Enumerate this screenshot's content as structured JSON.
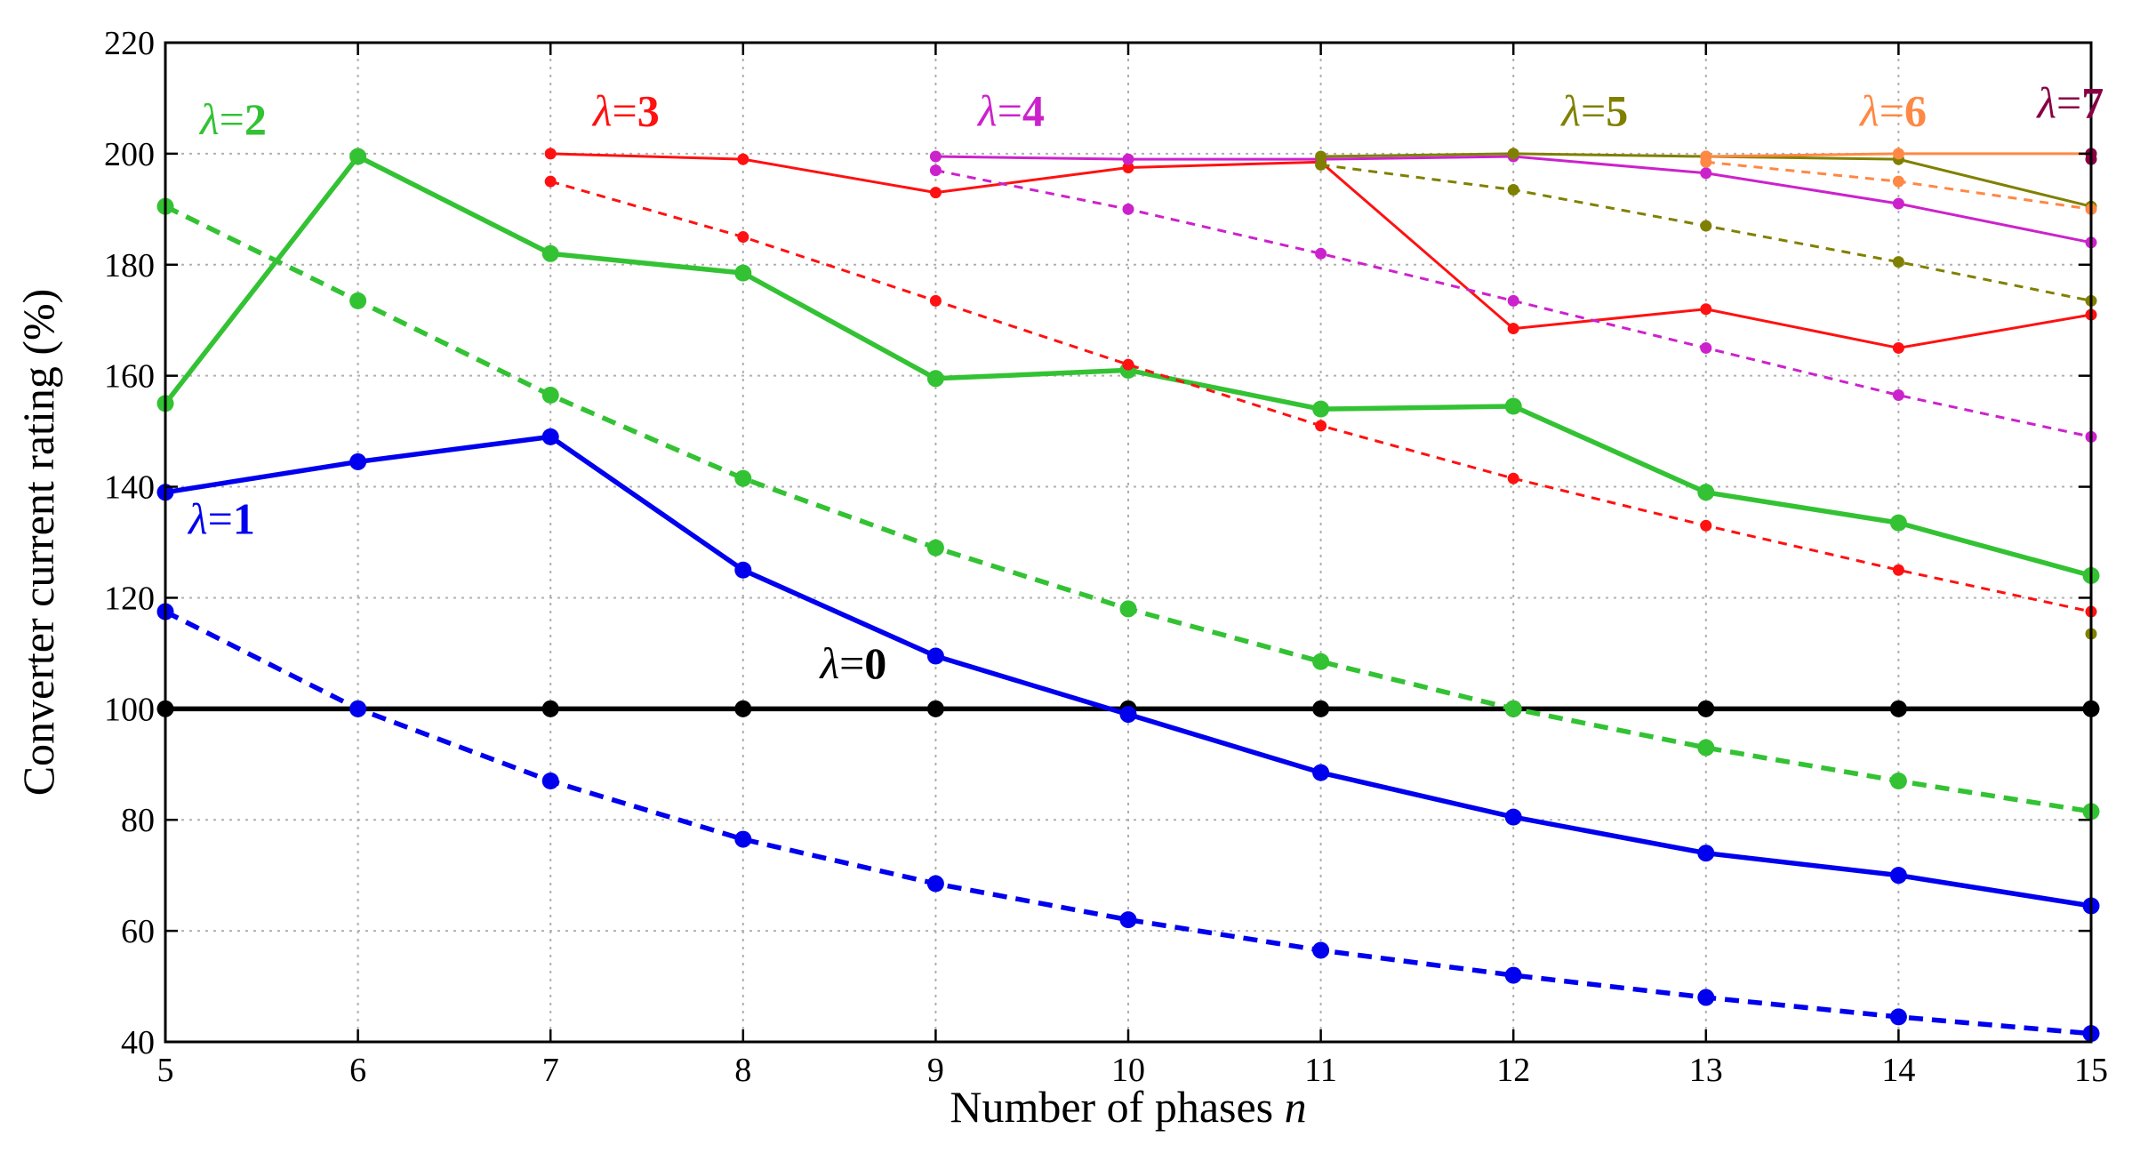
{
  "chart_data": {
    "type": "line",
    "title": "",
    "xlabel": "Number of phases ",
    "xlabel_var": "n",
    "ylabel": "Converter current rating (%)",
    "xlim": [
      5,
      15
    ],
    "ylim": [
      40,
      220
    ],
    "xticks": [
      5,
      6,
      7,
      8,
      9,
      10,
      11,
      12,
      13,
      14,
      15
    ],
    "yticks": [
      40,
      60,
      80,
      100,
      120,
      140,
      160,
      180,
      200,
      220
    ],
    "grid": true,
    "series": [
      {
        "name": "λ=0 solid",
        "lambda": 0,
        "color": "#000000",
        "style": "solid",
        "x": [
          5,
          6,
          7,
          8,
          9,
          10,
          11,
          12,
          13,
          14,
          15
        ],
        "values": [
          100,
          100,
          100,
          100,
          100,
          100,
          100,
          100,
          100,
          100,
          100
        ]
      },
      {
        "name": "λ=1 solid",
        "lambda": 1,
        "color": "#0000ee",
        "style": "solid",
        "x": [
          5,
          6,
          7,
          8,
          9,
          10,
          11,
          12,
          13,
          14,
          15
        ],
        "values": [
          139,
          144.5,
          149,
          125,
          109.5,
          99,
          88.5,
          80.5,
          74,
          70,
          64.5
        ]
      },
      {
        "name": "λ=1 dashed",
        "lambda": 1,
        "color": "#0000ee",
        "style": "dashed",
        "x": [
          5,
          6,
          7,
          8,
          9,
          10,
          11,
          12,
          13,
          14,
          15
        ],
        "values": [
          117.5,
          100,
          87,
          76.5,
          68.5,
          62,
          56.5,
          52,
          48,
          44.5,
          41.5
        ]
      },
      {
        "name": "λ=2 solid",
        "lambda": 2,
        "color": "#33c233",
        "style": "solid",
        "x": [
          5,
          6,
          7,
          8,
          9,
          10,
          11,
          12,
          13,
          14,
          15
        ],
        "values": [
          155,
          199.5,
          182,
          178.5,
          159.5,
          161,
          154,
          154.5,
          139,
          133.5,
          124
        ]
      },
      {
        "name": "λ=2 dashed",
        "lambda": 2,
        "color": "#33c233",
        "style": "dashed",
        "x": [
          5,
          6,
          7,
          8,
          9,
          10,
          11,
          12,
          13,
          14,
          15
        ],
        "values": [
          190.5,
          173.5,
          156.5,
          141.5,
          129,
          118,
          108.5,
          100,
          93,
          87,
          81.5
        ]
      },
      {
        "name": "λ=3 solid",
        "lambda": 3,
        "color": "#ff1111",
        "style": "solid",
        "x": [
          7,
          8,
          9,
          10,
          11,
          12,
          13,
          14,
          15
        ],
        "values": [
          200,
          199,
          193,
          197.5,
          198.5,
          168.5,
          172,
          165,
          171
        ]
      },
      {
        "name": "λ=3 dashed",
        "lambda": 3,
        "color": "#ff1111",
        "style": "dashed",
        "x": [
          7,
          8,
          9,
          10,
          11,
          12,
          13,
          14,
          15
        ],
        "values": [
          195,
          185,
          173.5,
          162,
          151,
          141.5,
          133,
          125,
          117.5
        ]
      },
      {
        "name": "λ=4 solid",
        "lambda": 4,
        "color": "#cc22cc",
        "style": "solid",
        "x": [
          9,
          10,
          11,
          12,
          13,
          14,
          15
        ],
        "values": [
          199.5,
          199,
          199,
          199.5,
          196.5,
          191,
          184
        ]
      },
      {
        "name": "λ=4 dashed",
        "lambda": 4,
        "color": "#cc22cc",
        "style": "dashed",
        "x": [
          9,
          10,
          11,
          12,
          13,
          14,
          15
        ],
        "values": [
          197,
          190,
          182,
          173.5,
          165,
          156.5,
          149
        ]
      },
      {
        "name": "λ=5 solid",
        "lambda": 5,
        "color": "#808000",
        "style": "solid",
        "x": [
          11,
          12,
          13,
          14,
          15
        ],
        "values": [
          199.5,
          200,
          199.5,
          199,
          190.5
        ]
      },
      {
        "name": "λ=5 dashed",
        "lambda": 5,
        "color": "#808000",
        "style": "dashed",
        "x": [
          11,
          12,
          13,
          14,
          15
        ],
        "values": [
          198,
          193.5,
          187,
          180.5,
          173.5
        ]
      },
      {
        "name": "λ=5 single",
        "lambda": 5,
        "color": "#808000",
        "style": "point",
        "x": [
          15
        ],
        "values": [
          113.5
        ]
      },
      {
        "name": "λ=6 solid",
        "lambda": 6,
        "color": "#ff8844",
        "style": "solid",
        "x": [
          13,
          14,
          15
        ],
        "values": [
          199.5,
          200,
          200
        ]
      },
      {
        "name": "λ=6 dashed",
        "lambda": 6,
        "color": "#ff8844",
        "style": "dashed",
        "x": [
          13,
          14,
          15
        ],
        "values": [
          198.5,
          195,
          190
        ]
      },
      {
        "name": "λ=7 points",
        "lambda": 7,
        "color": "#880044",
        "style": "point",
        "x": [
          15,
          15
        ],
        "values": [
          200,
          199
        ]
      }
    ],
    "annotations": [
      {
        "text_sym": "λ",
        "text_op": "=",
        "text_num": "0",
        "color": "#000000",
        "x": 8.4,
        "y": 105.5,
        "italic_num": false
      },
      {
        "text_sym": "λ",
        "text_op": "=",
        "text_num": "1",
        "color": "#0000ee",
        "x": 5.12,
        "y": 131.5,
        "italic_num": false
      },
      {
        "text_sym": "λ",
        "text_op": "=",
        "text_num": "2",
        "color": "#33c233",
        "x": 5.18,
        "y": 203.5,
        "italic_num": false
      },
      {
        "text_sym": "λ",
        "text_op": "=",
        "text_num": "3",
        "color": "#ff1111",
        "x": 7.22,
        "y": 205,
        "italic_num": false
      },
      {
        "text_sym": "λ",
        "text_op": "=",
        "text_num": "4",
        "color": "#cc22cc",
        "x": 9.22,
        "y": 205,
        "italic_num": false
      },
      {
        "text_sym": "λ",
        "text_op": "=",
        "text_num": "5",
        "color": "#808000",
        "x": 12.25,
        "y": 205,
        "italic_num": false
      },
      {
        "text_sym": "λ",
        "text_op": "=",
        "text_num": "6",
        "color": "#ff8844",
        "x": 13.8,
        "y": 205,
        "italic_num": false
      },
      {
        "text_sym": "λ",
        "text_op": "=",
        "text_num": "7",
        "color": "#880044",
        "x": 14.72,
        "y": 206.5,
        "italic_num": false
      }
    ]
  }
}
